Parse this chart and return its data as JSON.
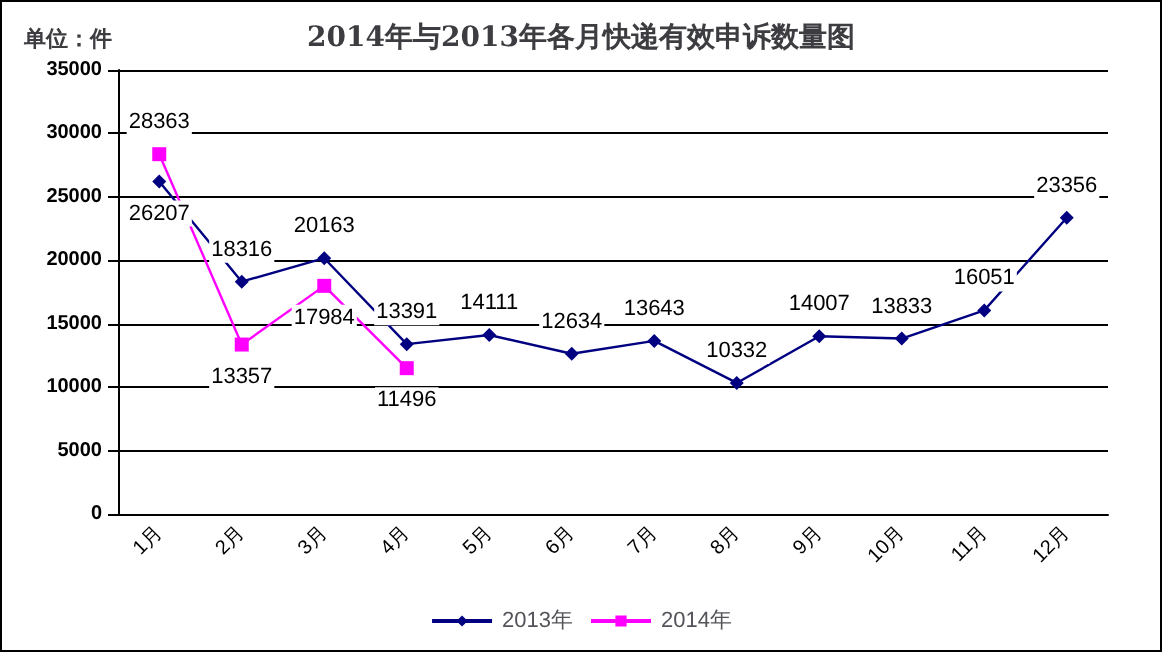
{
  "chart_data": {
    "type": "line",
    "title": "2014年与2013年各月快递有效申诉数量图",
    "ylabel": "单位：件",
    "categories": [
      "1月",
      "2月",
      "3月",
      "4月",
      "5月",
      "6月",
      "7月",
      "8月",
      "9月",
      "10月",
      "11月",
      "12月"
    ],
    "series": [
      {
        "name": "2013年",
        "color": "#000080",
        "marker": "diamond",
        "values": [
          26207,
          18316,
          20163,
          13391,
          14111,
          12634,
          13643,
          10332,
          14007,
          13833,
          16051,
          23356
        ]
      },
      {
        "name": "2014年",
        "color": "#ff00ff",
        "marker": "square",
        "values": [
          28363,
          13357,
          17984,
          11496,
          null,
          null,
          null,
          null,
          null,
          null,
          null,
          null
        ]
      }
    ],
    "ylim": [
      0,
      35000
    ],
    "yticks": [
      0,
      5000,
      10000,
      15000,
      20000,
      25000,
      30000,
      35000
    ],
    "grid": "y",
    "legend": "bottom",
    "data_labels": true
  }
}
